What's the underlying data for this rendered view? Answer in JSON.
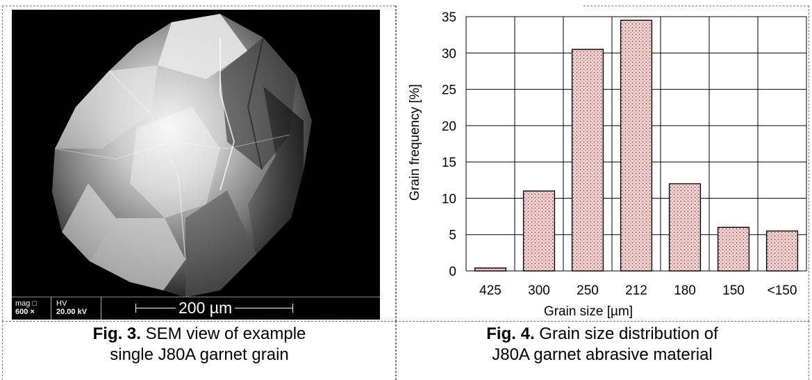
{
  "figure3": {
    "caption_label": "Fig. 3.",
    "caption_text_line1": "SEM view of example",
    "caption_text_line2": "single J80A garnet grain",
    "databar": {
      "mag_label": "mag □",
      "mag_value": "600 ×",
      "hv_label": "HV",
      "hv_value": "20.00 kV",
      "scale_text": "200 µm"
    }
  },
  "figure4": {
    "caption_label": "Fig. 4.",
    "caption_text_line1": "Grain size distribution of",
    "caption_text_line2": "J80A garnet abrasive material"
  },
  "chart_data": {
    "type": "bar",
    "categories": [
      "425",
      "300",
      "250",
      "212",
      "180",
      "150",
      "<150"
    ],
    "values": [
      0.4,
      11,
      30.5,
      34.5,
      12,
      6,
      5.5
    ],
    "title": "",
    "xlabel": "Grain size  [µm]",
    "ylabel": "Grain frequency  [%]",
    "ylim": [
      0,
      35
    ],
    "yticks": [
      0,
      5,
      10,
      15,
      20,
      25,
      30,
      35
    ],
    "grid": true,
    "bar_fill": "#f2d6d6",
    "bar_dots": "#8b3a3a"
  }
}
